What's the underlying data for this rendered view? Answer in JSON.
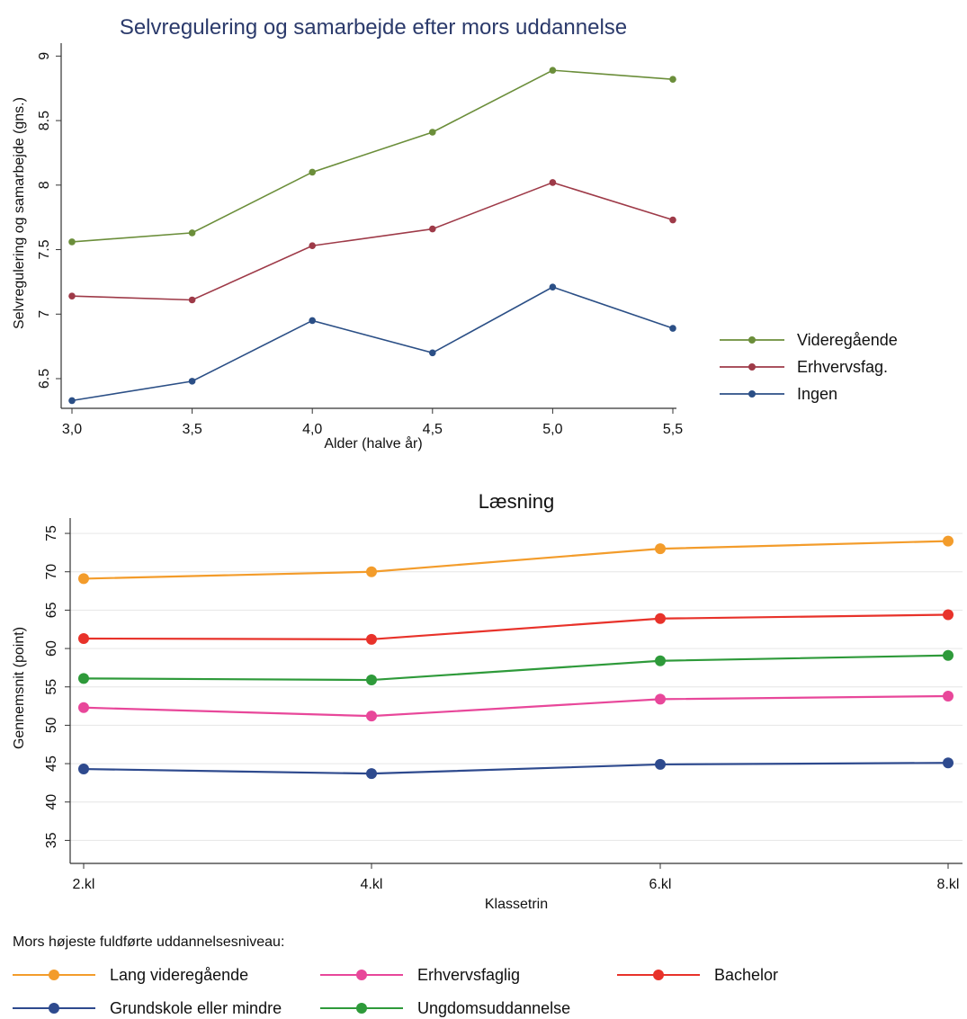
{
  "chart_data": [
    {
      "type": "line",
      "title": "Selvregulering og samarbejde efter mors uddannelse",
      "xlabel": "Alder (halve år)",
      "ylabel": "Selvregulering og samarbejde (gns.)",
      "x": [
        3.0,
        3.5,
        4.0,
        4.5,
        5.0,
        5.5
      ],
      "x_tick_labels": [
        "3,0",
        "3,5",
        "4,0",
        "4,5",
        "5,0",
        "5,5"
      ],
      "y_ticks": [
        6.5,
        7,
        7.5,
        8,
        8.5,
        9
      ],
      "y_tick_labels": [
        "6.5",
        "7",
        "7.5",
        "8",
        "8.5",
        "9"
      ],
      "xlim": [
        3.0,
        5.5
      ],
      "ylim": [
        6.27,
        9.1
      ],
      "grid": false,
      "legend_position": "right",
      "series": [
        {
          "name": "Videregående",
          "color": "#6b8e3a",
          "values": [
            7.56,
            7.63,
            8.1,
            8.41,
            8.89,
            8.82
          ]
        },
        {
          "name": "Erhvervsfag.",
          "color": "#9e3a48",
          "values": [
            7.14,
            7.11,
            7.53,
            7.66,
            8.02,
            7.73
          ]
        },
        {
          "name": "Ingen",
          "color": "#2b4f86",
          "values": [
            6.33,
            6.48,
            6.95,
            6.7,
            7.21,
            6.89
          ]
        }
      ]
    },
    {
      "type": "line",
      "title": "Læsning",
      "xlabel": "Klassetrin",
      "ylabel": "Gennemsnit (point)",
      "categories": [
        "2.kl",
        "4.kl",
        "6.kl",
        "8.kl"
      ],
      "y_ticks": [
        35,
        40,
        45,
        50,
        55,
        60,
        65,
        70,
        75
      ],
      "ylim": [
        32,
        77
      ],
      "grid": true,
      "legend_title": "Mors højeste fuldførte uddannelsesniveau:",
      "legend_position": "bottom",
      "series": [
        {
          "name": "Lang videregående",
          "color": "#f39c2b",
          "values": [
            69.1,
            70.0,
            73.0,
            74.0
          ]
        },
        {
          "name": "Erhvervsfaglig",
          "color": "#e8479a",
          "values": [
            52.3,
            51.2,
            53.4,
            53.8
          ]
        },
        {
          "name": "Bachelor",
          "color": "#e8322a",
          "values": [
            61.3,
            61.2,
            63.9,
            64.4
          ]
        },
        {
          "name": "Grundskole eller mindre",
          "color": "#2e4a8e",
          "values": [
            44.3,
            43.7,
            44.9,
            45.1
          ]
        },
        {
          "name": "Ungdomsuddannelse",
          "color": "#2e9a3a",
          "values": [
            56.1,
            55.9,
            58.4,
            59.1
          ]
        }
      ]
    }
  ]
}
